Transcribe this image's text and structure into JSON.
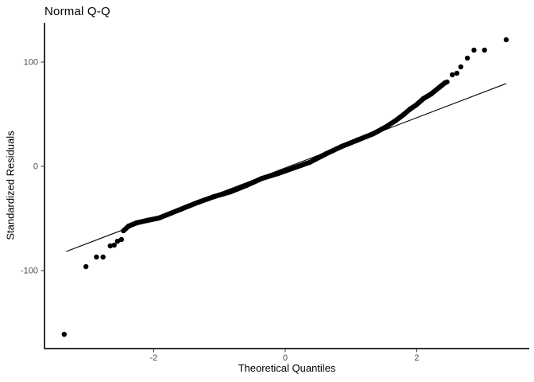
{
  "chart_data": {
    "type": "scatter",
    "title": "Normal Q-Q",
    "xlabel": "Theoretical Quantiles",
    "ylabel": "Standardized Residuals",
    "x_ticks": [
      -2,
      0,
      2
    ],
    "y_ticks": [
      -100,
      0,
      100
    ],
    "xlim": [
      -3.66,
      3.71
    ],
    "ylim": [
      -174.8,
      137.4
    ],
    "grid": false,
    "legend": false,
    "point_color": "#000000",
    "axis_line_color": "#333333",
    "tick_label_color": "#4d4d4d",
    "reference_line": {
      "x1": -3.33,
      "y1": -81.7,
      "x2": 3.36,
      "y2": 79.4,
      "color": "#000000"
    },
    "lower_tail_points": [
      [
        -3.36,
        -161.1
      ],
      [
        -3.03,
        -96.2
      ],
      [
        -2.87,
        -87.0
      ],
      [
        -2.77,
        -87.0
      ],
      [
        -2.66,
        -76.3
      ],
      [
        -2.6,
        -75.6
      ],
      [
        -2.55,
        -71.8
      ],
      [
        -2.49,
        -70.2
      ]
    ],
    "band_path": [
      [
        -2.46,
        -61.8
      ],
      [
        -2.38,
        -57.3
      ],
      [
        -2.26,
        -54.2
      ],
      [
        -2.1,
        -51.9
      ],
      [
        -1.92,
        -49.6
      ],
      [
        -1.74,
        -45.0
      ],
      [
        -1.53,
        -39.7
      ],
      [
        -1.32,
        -34.4
      ],
      [
        -1.08,
        -29.0
      ],
      [
        -0.83,
        -24.4
      ],
      [
        -0.59,
        -18.3
      ],
      [
        -0.35,
        -11.5
      ],
      [
        -0.11,
        -6.9
      ],
      [
        0.13,
        -1.5
      ],
      [
        0.37,
        3.8
      ],
      [
        0.62,
        12.0
      ],
      [
        0.86,
        19.1
      ],
      [
        1.1,
        25.2
      ],
      [
        1.34,
        31.3
      ],
      [
        1.52,
        37.4
      ],
      [
        1.67,
        43.5
      ],
      [
        1.8,
        49.6
      ],
      [
        1.9,
        55.0
      ],
      [
        1.99,
        58.8
      ],
      [
        2.1,
        64.9
      ],
      [
        2.22,
        69.5
      ],
      [
        2.34,
        75.6
      ],
      [
        2.43,
        80.2
      ]
    ],
    "upper_tail_points": [
      [
        2.46,
        80.9
      ],
      [
        2.54,
        87.8
      ],
      [
        2.61,
        89.3
      ],
      [
        2.67,
        95.4
      ],
      [
        2.77,
        103.8
      ],
      [
        2.87,
        111.5
      ],
      [
        3.03,
        111.5
      ],
      [
        3.36,
        121.4
      ]
    ]
  }
}
